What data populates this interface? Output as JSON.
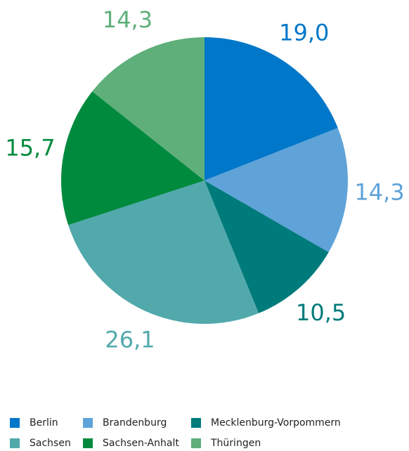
{
  "chart_data": {
    "type": "pie",
    "categories": [
      "Berlin",
      "Brandenburg",
      "Mecklenburg-Vorpommern",
      "Sachsen",
      "Sachsen-Anhalt",
      "Thüringen"
    ],
    "values": [
      19.0,
      14.3,
      10.5,
      26.1,
      15.7,
      14.3
    ],
    "value_labels": [
      "19,0",
      "14,3",
      "10,5",
      "26,1",
      "15,7",
      "14,3"
    ],
    "colors": [
      "#0077c8",
      "#5fa3d9",
      "#007b7b",
      "#52a9ac",
      "#008a3e",
      "#5eaf7a"
    ],
    "legend": "bottom"
  }
}
